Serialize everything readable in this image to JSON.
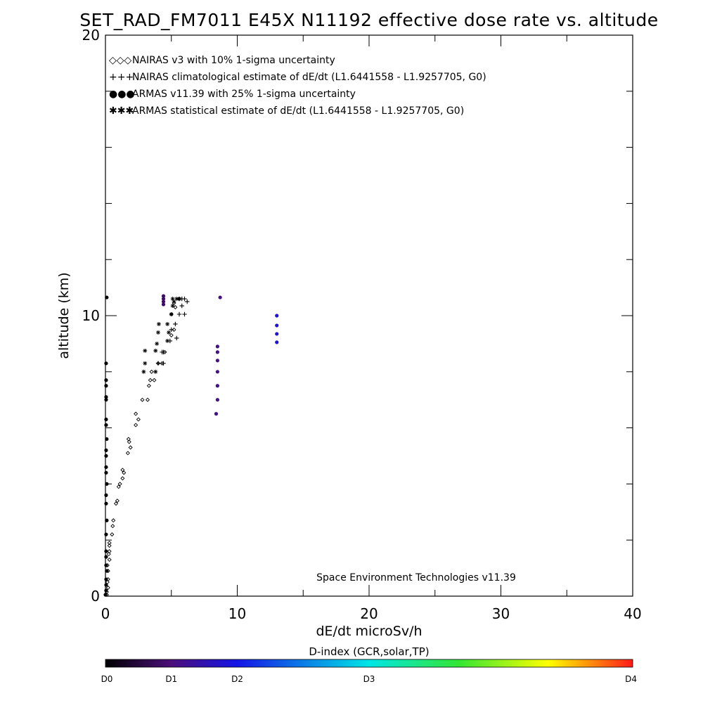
{
  "chart_data": {
    "type": "scatter",
    "title": "SET_RAD_FM7011  E45X N11192 effective dose rate vs. altitude",
    "xlabel": "dE/dt microSv/h",
    "ylabel": "altitude (km)",
    "xlim": [
      0,
      40
    ],
    "ylim": [
      0,
      20
    ],
    "x_tick_labels": [
      "0",
      "10",
      "20",
      "30",
      "40"
    ],
    "x_minor_step": 5,
    "y_tick_labels": [
      "0",
      "10",
      "20"
    ],
    "y_minor_step": 2,
    "grid": false,
    "legend_position": "top-left",
    "credit": "Space Environment Technologies v11.39",
    "series": [
      {
        "name": "NAIRAS v3 with 10% 1-sigma uncertainty",
        "marker": "diamond",
        "legend_symbol": "◇◇◇",
        "color": "#000000",
        "points": [
          [
            0.1,
            0.05
          ],
          [
            0.1,
            0.15
          ],
          [
            0.2,
            0.3
          ],
          [
            0.15,
            0.5
          ],
          [
            0.2,
            0.6
          ],
          [
            0.2,
            0.9
          ],
          [
            0.15,
            1.1
          ],
          [
            0.3,
            1.3
          ],
          [
            0.25,
            1.5
          ],
          [
            0.3,
            1.6
          ],
          [
            0.3,
            1.8
          ],
          [
            0.3,
            1.9
          ],
          [
            0.5,
            2.2
          ],
          [
            0.55,
            2.5
          ],
          [
            0.6,
            2.7
          ],
          [
            0.8,
            3.3
          ],
          [
            0.9,
            3.4
          ],
          [
            1.0,
            3.9
          ],
          [
            1.1,
            4.0
          ],
          [
            1.3,
            4.2
          ],
          [
            1.4,
            4.4
          ],
          [
            1.3,
            4.5
          ],
          [
            1.7,
            5.1
          ],
          [
            1.9,
            5.3
          ],
          [
            1.8,
            5.5
          ],
          [
            1.75,
            5.6
          ],
          [
            2.3,
            6.1
          ],
          [
            2.5,
            6.3
          ],
          [
            2.3,
            6.5
          ],
          [
            2.8,
            7.0
          ],
          [
            3.2,
            7.0
          ],
          [
            3.3,
            7.5
          ],
          [
            3.4,
            7.7
          ],
          [
            3.7,
            7.7
          ],
          [
            3.5,
            8.0
          ],
          [
            4.0,
            8.3
          ],
          [
            4.3,
            8.3
          ],
          [
            4.5,
            8.7
          ],
          [
            5.0,
            9.3
          ],
          [
            5.2,
            9.5
          ],
          [
            5.0,
            10.05
          ],
          [
            5.3,
            10.3
          ],
          [
            5.2,
            10.45
          ],
          [
            5.6,
            10.6
          ]
        ]
      },
      {
        "name": "NAIRAS climatological estimate of dE/dt (L1.6441558 - L1.9257705, G0)",
        "marker": "plus",
        "legend_symbol": "+++",
        "color": "#000000",
        "points": [
          [
            4.0,
            8.3
          ],
          [
            4.4,
            8.3
          ],
          [
            4.3,
            8.7
          ],
          [
            4.4,
            8.7
          ],
          [
            4.9,
            9.1
          ],
          [
            5.4,
            9.2
          ],
          [
            5.0,
            9.5
          ],
          [
            5.3,
            9.7
          ],
          [
            5.6,
            10.05
          ],
          [
            6.0,
            10.05
          ],
          [
            5.8,
            10.35
          ],
          [
            6.2,
            10.5
          ],
          [
            5.6,
            10.6
          ],
          [
            5.8,
            10.6
          ],
          [
            6.0,
            10.6
          ]
        ]
      },
      {
        "name": "ARMAS v11.39 with 25% 1-sigma uncertainty",
        "marker": "dot",
        "legend_symbol": "●●●",
        "color": "#1a4fd6",
        "points": [
          [
            0.0,
            0.05
          ],
          [
            0.05,
            0.2
          ],
          [
            0.05,
            0.4
          ],
          [
            0.05,
            0.6
          ],
          [
            0.1,
            0.9
          ],
          [
            0.05,
            1.1
          ],
          [
            0.05,
            1.4
          ],
          [
            0.05,
            1.6
          ],
          [
            0.05,
            2.2
          ],
          [
            0.1,
            2.7
          ],
          [
            0.05,
            3.3
          ],
          [
            0.05,
            3.6
          ],
          [
            0.1,
            4.0
          ],
          [
            0.05,
            4.4
          ],
          [
            0.05,
            4.6
          ],
          [
            0.05,
            5.0
          ],
          [
            0.05,
            5.2
          ],
          [
            0.1,
            5.6
          ],
          [
            0.05,
            6.1
          ],
          [
            0.05,
            6.3
          ],
          [
            0.05,
            7.0
          ],
          [
            0.05,
            7.1
          ],
          [
            0.05,
            7.5
          ],
          [
            0.05,
            7.7
          ],
          [
            0.05,
            8.3
          ],
          [
            0.1,
            10.65
          ],
          [
            4.4,
            10.4
          ],
          [
            4.4,
            10.5
          ],
          [
            4.4,
            10.6
          ],
          [
            4.4,
            10.7
          ],
          [
            8.4,
            6.5
          ],
          [
            8.5,
            7.0
          ],
          [
            8.5,
            7.5
          ],
          [
            8.5,
            8.0
          ],
          [
            8.5,
            8.4
          ],
          [
            8.5,
            8.7
          ],
          [
            8.5,
            8.9
          ],
          [
            8.7,
            10.65
          ],
          [
            13.0,
            9.05
          ],
          [
            13.0,
            9.35
          ],
          [
            13.0,
            9.65
          ],
          [
            13.0,
            10.0
          ]
        ]
      },
      {
        "name": "ARMAS statistical estimate of dE/dt (L1.6441558 - L1.9257705, G0)",
        "marker": "asterisk",
        "legend_symbol": "✱✱✱",
        "color": "#000000",
        "points": [
          [
            2.9,
            8.0
          ],
          [
            3.0,
            8.3
          ],
          [
            3.0,
            8.75
          ],
          [
            3.8,
            8.0
          ],
          [
            3.8,
            8.75
          ],
          [
            3.9,
            9.0
          ],
          [
            4.0,
            9.4
          ],
          [
            4.05,
            9.7
          ],
          [
            4.7,
            9.1
          ],
          [
            4.8,
            9.4
          ],
          [
            4.7,
            9.7
          ],
          [
            5.0,
            10.05
          ],
          [
            5.1,
            10.35
          ],
          [
            5.2,
            10.5
          ],
          [
            5.1,
            10.6
          ],
          [
            5.4,
            10.6
          ],
          [
            5.6,
            10.6
          ]
        ]
      }
    ]
  },
  "colorbar": {
    "title": "D-index (GCR,solar,TP)",
    "tick_labels": [
      "D0",
      "D1",
      "D2",
      "D3",
      "D4"
    ],
    "tick_positions": [
      0,
      0.125,
      0.25,
      0.5,
      1.0
    ],
    "gradient_stops": [
      {
        "offset": 0,
        "color": "#000000"
      },
      {
        "offset": 0.125,
        "color": "#4b0f7a"
      },
      {
        "offset": 0.25,
        "color": "#1414e6"
      },
      {
        "offset": 0.5,
        "color": "#00e6e6"
      },
      {
        "offset": 0.67,
        "color": "#33e633"
      },
      {
        "offset": 0.84,
        "color": "#ffff00"
      },
      {
        "offset": 1.0,
        "color": "#ff1a1a"
      }
    ]
  }
}
